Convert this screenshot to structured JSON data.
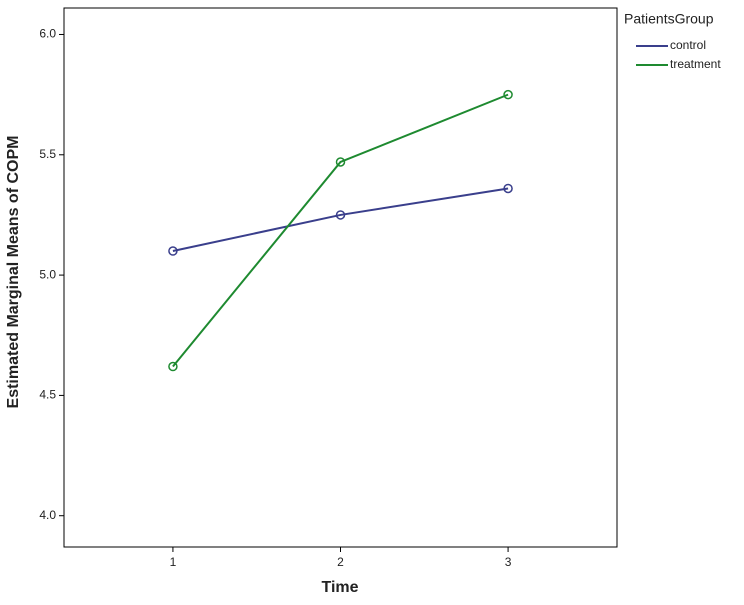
{
  "chart_data": {
    "type": "line",
    "x_label": "Time",
    "y_label": "Estimated Marginal Means of COPM",
    "legend_title": "PatientsGroup",
    "x": [
      1,
      2,
      3
    ],
    "xlim": [
      0.35,
      3.65
    ],
    "xticks": [
      1,
      2,
      3
    ],
    "ylim": [
      3.87,
      6.11
    ],
    "yticks": [
      {
        "value": 4,
        "label": "4.0"
      },
      {
        "value": 4.5,
        "label": "4.5"
      },
      {
        "value": 5,
        "label": "5.0"
      },
      {
        "value": 5.5,
        "label": "5.5"
      },
      {
        "value": 6,
        "label": "6.0"
      }
    ],
    "grid": false,
    "legend": "outside-right",
    "series": [
      {
        "name": "control",
        "color": "#3a3f8c",
        "values": [
          5.1,
          5.25,
          5.36
        ]
      },
      {
        "name": "treatment",
        "color": "#1e8a30",
        "values": [
          4.62,
          5.47,
          5.75
        ]
      }
    ]
  }
}
